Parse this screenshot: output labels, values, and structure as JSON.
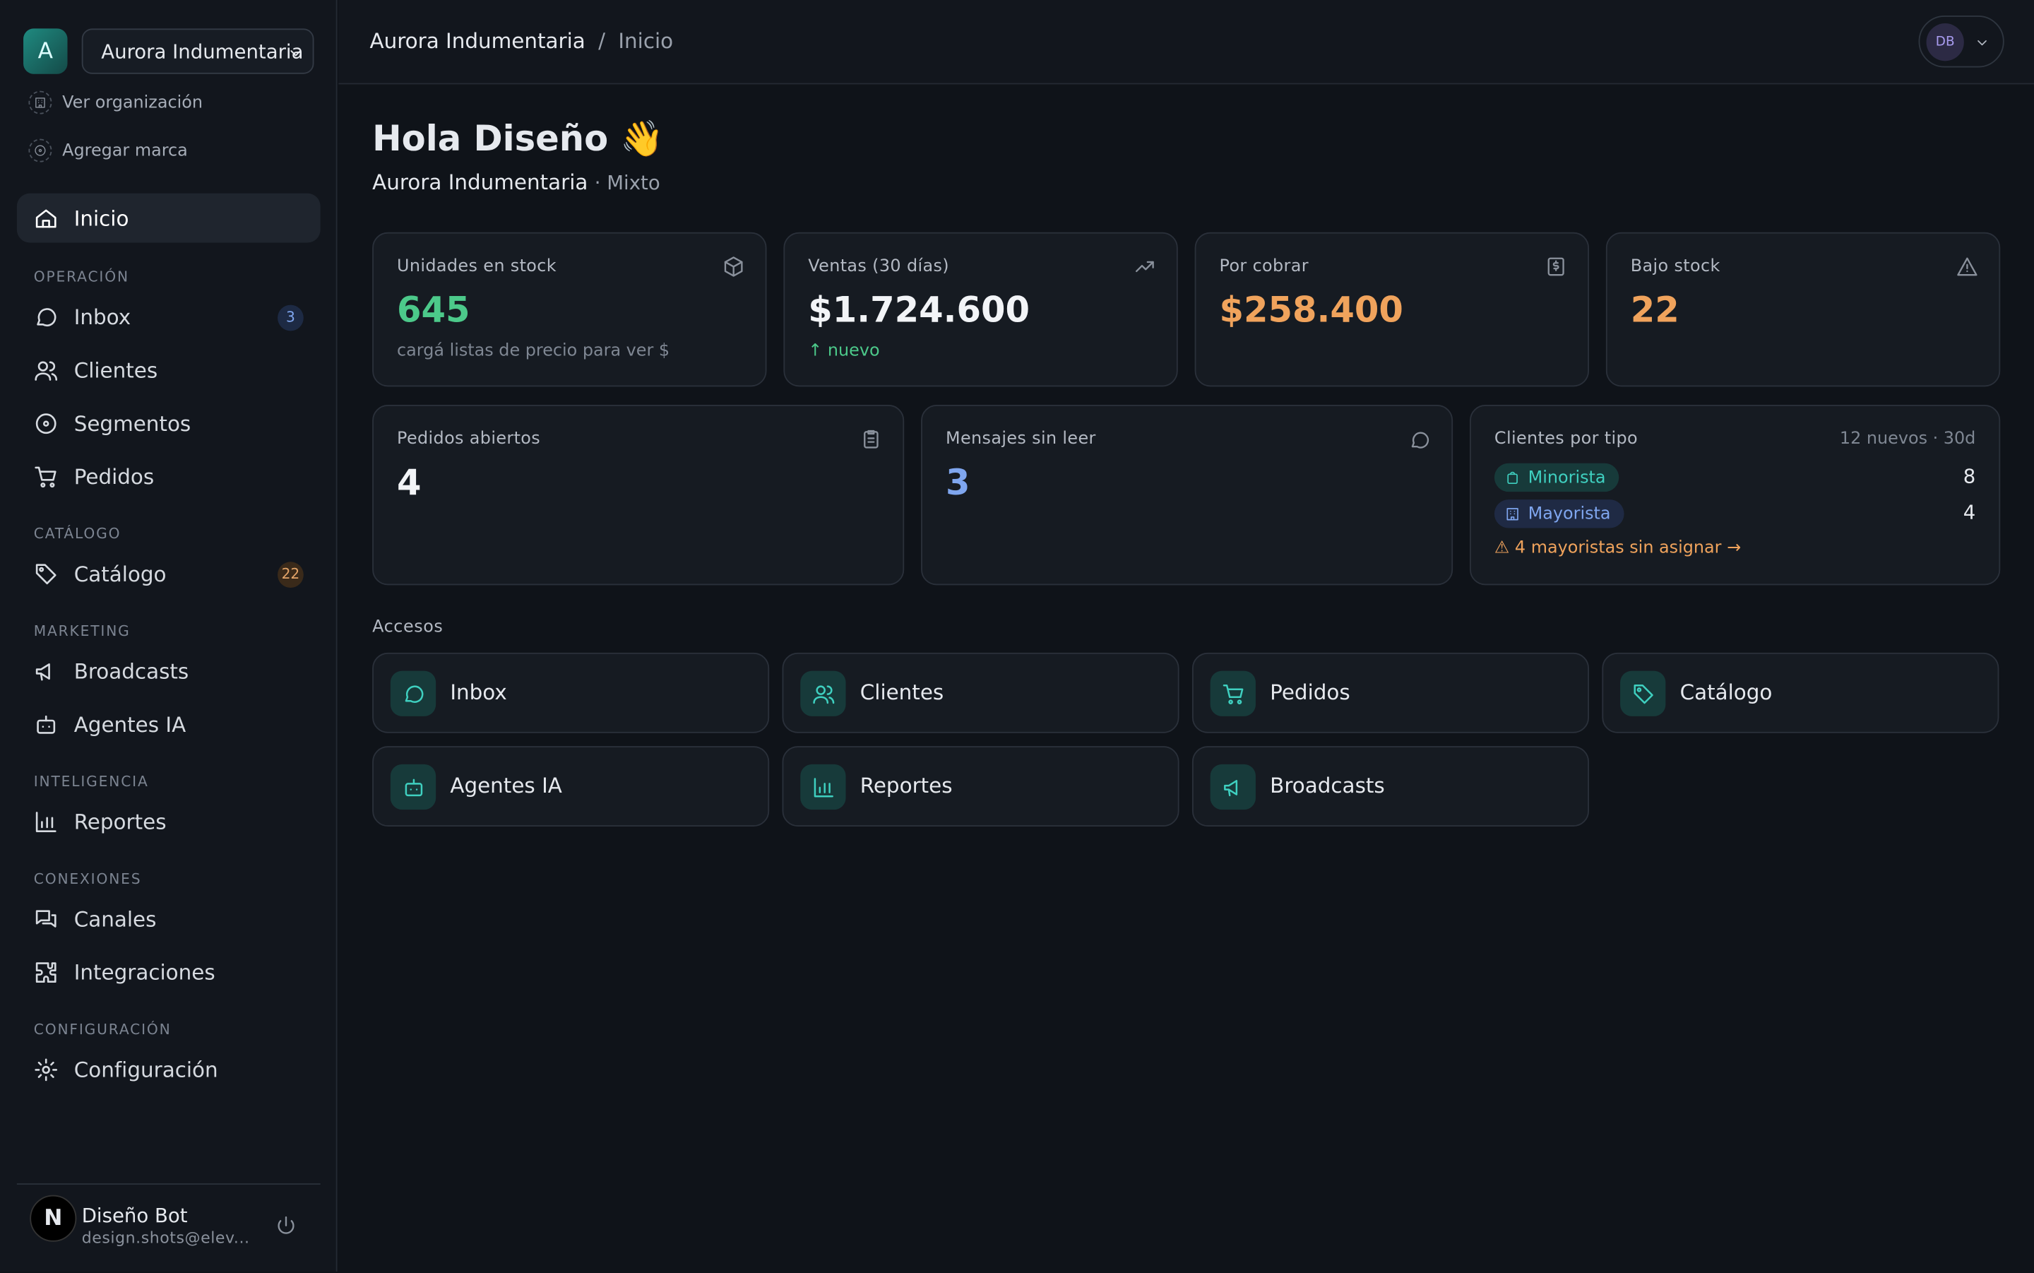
{
  "sidebar": {
    "org_initial": "A",
    "org_select": "Aurora Indumentaria",
    "links": [
      "Ver organización",
      "Agregar marca"
    ],
    "home": "Inicio",
    "sections": [
      {
        "title": "OPERACIÓN",
        "items": [
          {
            "label": "Inbox",
            "badge": 3
          },
          {
            "label": "Clientes"
          },
          {
            "label": "Segmentos"
          },
          {
            "label": "Pedidos"
          }
        ]
      },
      {
        "title": "CATÁLOGO",
        "items": [
          {
            "label": "Catálogo",
            "badge": 22
          }
        ]
      },
      {
        "title": "MARKETING",
        "items": [
          {
            "label": "Broadcasts"
          },
          {
            "label": "Agentes IA"
          }
        ]
      },
      {
        "title": "INTELIGENCIA",
        "items": [
          {
            "label": "Reportes"
          }
        ]
      },
      {
        "title": "CONEXIONES",
        "items": [
          {
            "label": "Canales"
          },
          {
            "label": "Integraciones"
          }
        ]
      },
      {
        "title": "CONFIGURACIÓN",
        "items": [
          {
            "label": "Configuración"
          }
        ]
      }
    ],
    "user": {
      "avatar": "N",
      "name": "Diseño Bot",
      "email": "design.shots@elev..."
    }
  },
  "header": {
    "org": "Aurora Indumentaria",
    "separator": "/",
    "page": "Inicio",
    "avatar": "DB"
  },
  "greeting": {
    "title": "Hola Diseño 👋",
    "brand": "Aurora Indumentaria",
    "mode": "· Mixto"
  },
  "stats": [
    {
      "label": "Unidades en stock",
      "value": "645",
      "note": "cargá listas de precio para ver $"
    },
    {
      "label": "Ventas (30 días)",
      "value": "$1.724.600",
      "note": "↑ nuevo"
    },
    {
      "label": "Por cobrar",
      "value": "$258.400"
    },
    {
      "label": "Bajo stock",
      "value": "22"
    }
  ],
  "stats2": [
    {
      "label": "Pedidos abiertos",
      "value": "4"
    },
    {
      "label": "Mensajes sin leer",
      "value": "3"
    }
  ],
  "clients": {
    "label": "Clientes por tipo",
    "meta": "12 nuevos · 30d",
    "rows": [
      {
        "label": "Minorista",
        "value": 8
      },
      {
        "label": "Mayorista",
        "value": 4
      }
    ],
    "warning": "⚠ 4 mayoristas sin asignar →"
  },
  "accesos": {
    "title": "Accesos",
    "items": [
      "Inbox",
      "Clientes",
      "Pedidos",
      "Catálogo",
      "Agentes IA",
      "Reportes",
      "Broadcasts"
    ]
  }
}
